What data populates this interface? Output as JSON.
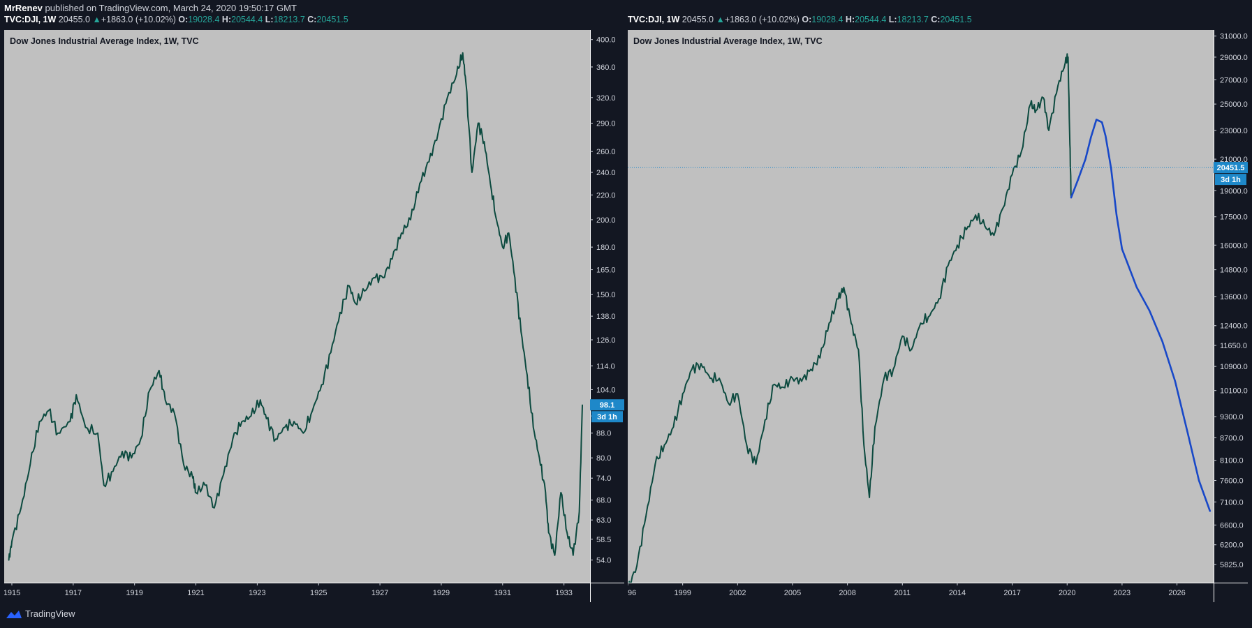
{
  "publication": {
    "author": "MrRenev",
    "text": " published on TradingView.com, March 24, 2020 19:50:17 GMT"
  },
  "legend": {
    "symbol": "TVC:DJI, 1W",
    "price": "20455.0",
    "change": "+1863.0 (+10.02%)",
    "o_label": "O:",
    "o": "19028.4",
    "h_label": "H:",
    "h": "20544.4",
    "l_label": "L:",
    "l": "18213.7",
    "c_label": "C:",
    "c": "20451.5"
  },
  "colors": {
    "bg": "#131722",
    "plot_bg": "#c0c0c0",
    "series": "#0c4a3f",
    "projection": "#1848c8",
    "badge": "#1e88c9"
  },
  "footer": {
    "brand": "TradingView",
    "icon": "tradingview-cloud-icon"
  },
  "chart_data": [
    {
      "type": "line",
      "title": "Dow Jones Industrial Average Index, 1W, TVC",
      "scale": "log",
      "x_ticks": [
        "1915",
        "1917",
        "1919",
        "1921",
        "1923",
        "1925",
        "1927",
        "1929",
        "1931",
        "1933"
      ],
      "y_ticks": [
        "400.0",
        "360.0",
        "320.0",
        "290.0",
        "260.0",
        "240.0",
        "220.0",
        "200.0",
        "180.0",
        "165.0",
        "150.0",
        "138.0",
        "126.0",
        "114.0",
        "104.0",
        "94.0",
        "88.0",
        "80.0",
        "74.0",
        "68.0",
        "63.0",
        "58.5",
        "54.0"
      ],
      "last_price": "98.1",
      "countdown": "3d 1h",
      "xlim": [
        1914.75,
        1933.85
      ],
      "ylim": [
        49.5,
        415
      ],
      "series": [
        {
          "x": [
            1914.9,
            1915.0,
            1915.3,
            1915.6,
            1915.9,
            1916.2,
            1916.5,
            1916.9,
            1917.1,
            1917.4,
            1917.8,
            1918.0,
            1918.3,
            1918.6,
            1918.9,
            1919.2,
            1919.5,
            1919.8,
            1920.0,
            1920.3,
            1920.6,
            1920.9,
            1921.0,
            1921.3,
            1921.6,
            1921.9,
            1922.2,
            1922.5,
            1922.8,
            1923.1,
            1923.3,
            1923.6,
            1923.9,
            1924.2,
            1924.5,
            1924.8,
            1925.1,
            1925.4,
            1925.7,
            1926.0,
            1926.2,
            1926.5,
            1926.8,
            1927.1,
            1927.4,
            1927.7,
            1928.0,
            1928.3,
            1928.6,
            1928.9,
            1929.2,
            1929.5,
            1929.7,
            1929.8,
            1930.0,
            1930.2,
            1930.4,
            1930.6,
            1930.8,
            1931.0,
            1931.2,
            1931.4,
            1931.6,
            1931.8,
            1932.0,
            1932.2,
            1932.4,
            1932.5,
            1932.7,
            1932.9,
            1933.1,
            1933.3,
            1933.5,
            1933.6
          ],
          "y": [
            54,
            58,
            66,
            78,
            92,
            96,
            88,
            92,
            102,
            90,
            88,
            72,
            76,
            82,
            80,
            86,
            104,
            112,
            100,
            95,
            78,
            74,
            70,
            72,
            66,
            75,
            86,
            92,
            94,
            100,
            93,
            86,
            90,
            92,
            88,
            96,
            106,
            120,
            140,
            155,
            145,
            152,
            160,
            160,
            172,
            190,
            200,
            230,
            250,
            280,
            320,
            350,
            380,
            340,
            240,
            290,
            270,
            230,
            200,
            180,
            190,
            160,
            130,
            110,
            90,
            80,
            70,
            60,
            55,
            70,
            60,
            55,
            65,
            98
          ]
        }
      ]
    },
    {
      "type": "line",
      "title": "Dow Jones Industrial Average Index, 1W, TVC",
      "scale": "log",
      "x_ticks": [
        "96",
        "1999",
        "2002",
        "2005",
        "2008",
        "2011",
        "2014",
        "2017",
        "2020",
        "2023",
        "2026"
      ],
      "y_ticks": [
        "31000.0",
        "29000.0",
        "27000.0",
        "25000.0",
        "23000.0",
        "21000.0",
        "19000.0",
        "17500.0",
        "16000.0",
        "14800.0",
        "13600.0",
        "12400.0",
        "11650.0",
        "10900.0",
        "10100.0",
        "9300.0",
        "8700.0",
        "8100.0",
        "7600.0",
        "7100.0",
        "6600.0",
        "6200.0",
        "5825.0"
      ],
      "last_price": "20451.5",
      "countdown": "3d 1h",
      "xlim": [
        1996.0,
        2028.0
      ],
      "ylim": [
        5500,
        31600
      ],
      "series": [
        {
          "x": [
            1996.0,
            1996.5,
            1997.0,
            1997.5,
            1998.0,
            1998.5,
            1999.0,
            1999.5,
            2000.0,
            2000.5,
            2001.0,
            2001.5,
            2002.0,
            2002.5,
            2003.0,
            2003.5,
            2004.0,
            2004.5,
            2005.0,
            2005.5,
            2006.0,
            2006.5,
            2007.0,
            2007.5,
            2007.8,
            2008.2,
            2008.6,
            2008.9,
            2009.2,
            2009.5,
            2010.0,
            2010.5,
            2011.0,
            2011.5,
            2012.0,
            2012.5,
            2013.0,
            2013.5,
            2014.0,
            2014.5,
            2015.0,
            2015.5,
            2016.0,
            2016.5,
            2017.0,
            2017.5,
            2018.0,
            2018.3,
            2018.7,
            2019.0,
            2019.5,
            2019.9,
            2020.05,
            2020.15,
            2020.22
          ],
          "y": [
            5400,
            5800,
            6800,
            8000,
            8500,
            9000,
            10000,
            10800,
            11000,
            10500,
            10500,
            9700,
            10000,
            8500,
            8000,
            9200,
            10300,
            10200,
            10500,
            10400,
            10800,
            11200,
            12500,
            13500,
            14000,
            12500,
            11500,
            8500,
            7200,
            9000,
            10500,
            10800,
            12000,
            11500,
            12500,
            12800,
            13500,
            15000,
            16000,
            16800,
            17600,
            17000,
            16500,
            18000,
            20000,
            21500,
            25000,
            24500,
            25500,
            23000,
            26500,
            28500,
            29000,
            22000,
            18600
          ]
        },
        {
          "name": "projection",
          "x": [
            2020.22,
            2020.6,
            2021.0,
            2021.3,
            2021.6,
            2021.9,
            2022.1,
            2022.4,
            2022.7,
            2023.0,
            2023.3,
            2023.8,
            2024.5,
            2025.2,
            2025.9,
            2026.6,
            2027.2,
            2027.8
          ],
          "y": [
            18600,
            19700,
            21000,
            22500,
            23800,
            23600,
            22600,
            20400,
            17600,
            15800,
            15100,
            14000,
            13000,
            11800,
            10400,
            8800,
            7600,
            6900
          ]
        }
      ]
    }
  ]
}
